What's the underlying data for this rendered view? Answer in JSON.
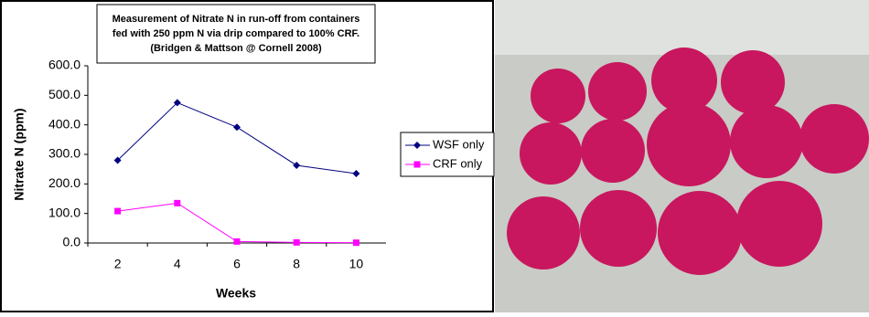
{
  "chart_data": {
    "type": "line",
    "title": [
      "Measurement of Nitrate N in run-off from containers",
      "fed with 250 ppm N via drip compared to 100% CRF.",
      "(Bridgen & Mattson @ Cornell  2008)"
    ],
    "x_label": "Weeks",
    "y_label": "Nitrate N (ppm)",
    "categories": [
      "2",
      "4",
      "6",
      "8",
      "10"
    ],
    "series": [
      {
        "name": "WSF only",
        "color": "#000080",
        "marker": "diamond",
        "values": [
          280,
          475,
          392,
          263,
          235
        ]
      },
      {
        "name": "CRF only",
        "color": "#ff00ff",
        "marker": "square",
        "values": [
          108,
          135,
          5,
          2,
          1
        ]
      }
    ],
    "ylim": [
      0,
      600
    ],
    "yticks": [
      {
        "value": 0,
        "label": "0.0"
      },
      {
        "value": 100,
        "label": "100.0"
      },
      {
        "value": 200,
        "label": "200.0"
      },
      {
        "value": 300,
        "label": "300.0"
      },
      {
        "value": 400,
        "label": "400.0"
      },
      {
        "value": 500,
        "label": "500.0"
      },
      {
        "value": 600,
        "label": "600.0"
      }
    ],
    "legend": "right"
  }
}
